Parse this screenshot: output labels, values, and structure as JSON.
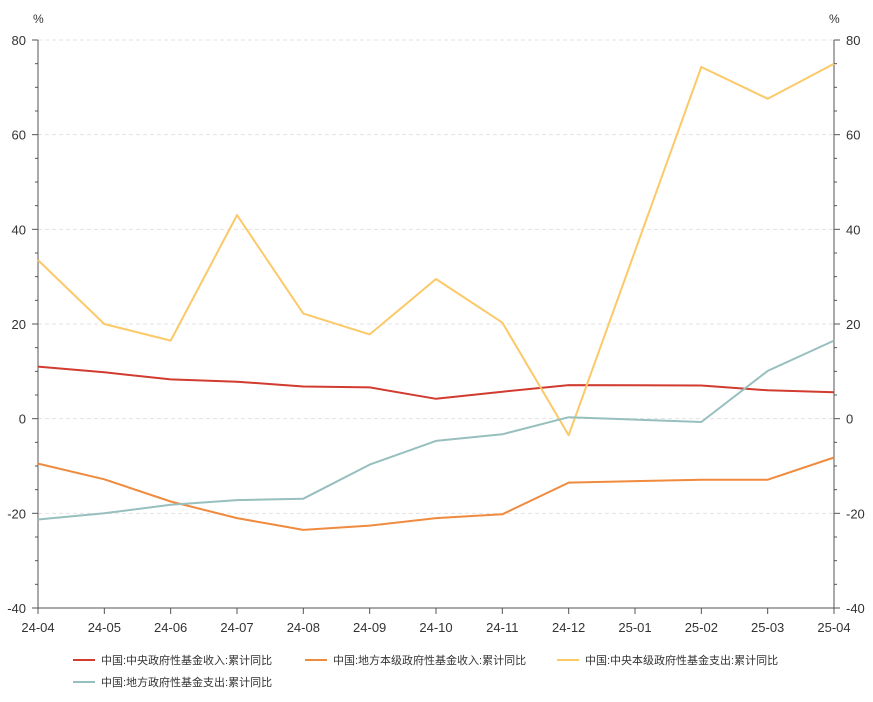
{
  "chart_data": {
    "type": "line",
    "categories": [
      "24-04",
      "24-05",
      "24-06",
      "24-07",
      "24-08",
      "24-09",
      "24-10",
      "24-11",
      "24-12",
      "25-01",
      "25-02",
      "25-03",
      "25-04"
    ],
    "y_unit_left": "%",
    "y_unit_right": "%",
    "ylim": [
      -40,
      80
    ],
    "yticks": [
      -40,
      -20,
      0,
      20,
      40,
      60,
      80
    ],
    "grid": true,
    "legend_position": "bottom",
    "series": [
      {
        "name": "中国:中央政府性基金收入:累计同比",
        "color": "#d13b30",
        "values": [
          11.0,
          9.8,
          8.3,
          7.8,
          6.8,
          6.6,
          4.2,
          5.7,
          7.1,
          null,
          7.0,
          6.0,
          5.6
        ]
      },
      {
        "name": "中国:地方本级政府性基金收入:累计同比",
        "color": "#f08a3e",
        "values": [
          -9.5,
          -12.8,
          -17.5,
          -21.0,
          -23.5,
          -22.6,
          -21.0,
          -20.2,
          -13.5,
          null,
          -12.9,
          -12.9,
          -8.2
        ]
      },
      {
        "name": "中国:中央本级政府性基金支出:累计同比",
        "color": "#fbc968",
        "values": [
          33.5,
          20.0,
          16.5,
          43.0,
          22.2,
          17.8,
          29.5,
          20.3,
          -3.5,
          null,
          74.3,
          67.6,
          75.0
        ]
      },
      {
        "name": "中国:地方政府性基金支出:累计同比",
        "color": "#97bfbd",
        "values": [
          -21.3,
          -20.0,
          -18.2,
          -17.2,
          -16.9,
          -9.7,
          -4.7,
          -3.3,
          0.3,
          null,
          -0.7,
          10.1,
          16.5
        ]
      }
    ]
  }
}
